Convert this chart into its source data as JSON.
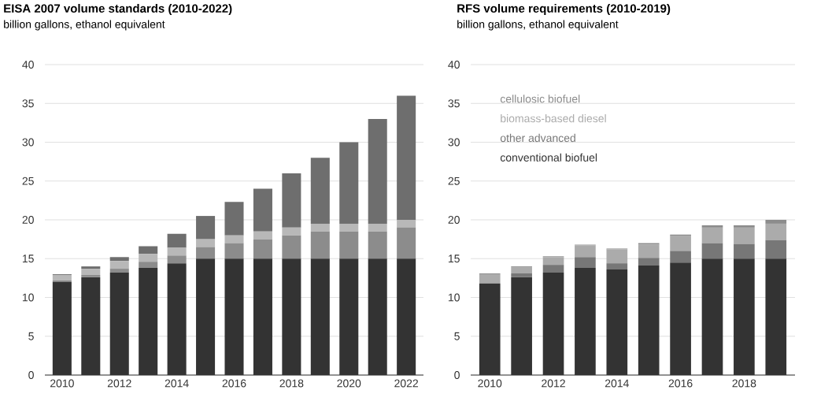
{
  "chart_data": [
    {
      "type": "bar",
      "stacked": true,
      "title": "EISA 2007 volume standards (2010-2022)",
      "subtitle": "billion gallons, ethanol equivalent",
      "categories": [
        "2010",
        null,
        "2012",
        null,
        "2014",
        null,
        "2016",
        null,
        "2018",
        null,
        "2020",
        null,
        "2022"
      ],
      "series": [
        {
          "color": "#333333",
          "values": [
            12.0,
            12.6,
            13.2,
            13.8,
            14.4,
            15,
            15,
            15,
            15,
            15,
            15,
            15,
            15
          ]
        },
        {
          "color": "#8c8c8c",
          "values": [
            0.2,
            0.3,
            0.5,
            0.8,
            1.0,
            1.5,
            2.0,
            2.5,
            3.0,
            3.5,
            3.5,
            3.5,
            4.0
          ]
        },
        {
          "color": "#b8b8b8",
          "values": [
            0.7,
            0.8,
            1.0,
            1.0,
            1.0,
            1.0,
            1.0,
            1.0,
            1.0,
            1.0,
            1.0,
            1.0,
            1.0
          ]
        },
        {
          "color": "#6e6e6e",
          "values": [
            0.1,
            0.3,
            0.5,
            1.0,
            1.8,
            3.0,
            4.3,
            5.5,
            7.0,
            8.5,
            10.5,
            13.5,
            16.0
          ]
        }
      ],
      "ylim": [
        0,
        40
      ],
      "yticks": [
        0,
        5,
        10,
        15,
        20,
        25,
        30,
        35,
        40
      ],
      "grid": "y"
    },
    {
      "type": "bar",
      "stacked": true,
      "title": "RFS volume requirements (2010-2019)",
      "subtitle": "billion gallons, ethanol equivalent",
      "categories": [
        "2010",
        null,
        "2012",
        null,
        "2014",
        null,
        "2016",
        null,
        "2018",
        null
      ],
      "series": [
        {
          "name": "conventional biofuel",
          "color": "#333333",
          "values": [
            11.8,
            12.6,
            13.2,
            13.8,
            13.6,
            14.1,
            14.5,
            15,
            15,
            15
          ]
        },
        {
          "name": "other advanced",
          "color": "#777777",
          "values": [
            0.0,
            0.5,
            1.0,
            1.4,
            0.8,
            1.0,
            1.5,
            2.0,
            1.9,
            2.4
          ]
        },
        {
          "name": "biomass-based diesel",
          "color": "#ababab",
          "values": [
            1.2,
            0.8,
            1.0,
            1.5,
            1.8,
            1.7,
            1.9,
            2.0,
            2.1,
            2.1
          ]
        },
        {
          "name": "cellulosic biofuel",
          "color": "#8c8c8c",
          "values": [
            0.1,
            0.1,
            0.1,
            0.1,
            0.1,
            0.2,
            0.2,
            0.3,
            0.3,
            0.5
          ]
        }
      ],
      "ylim": [
        0,
        40
      ],
      "yticks": [
        0,
        5,
        10,
        15,
        20,
        25,
        30,
        35,
        40
      ],
      "grid": "y",
      "legend": "top left"
    }
  ]
}
